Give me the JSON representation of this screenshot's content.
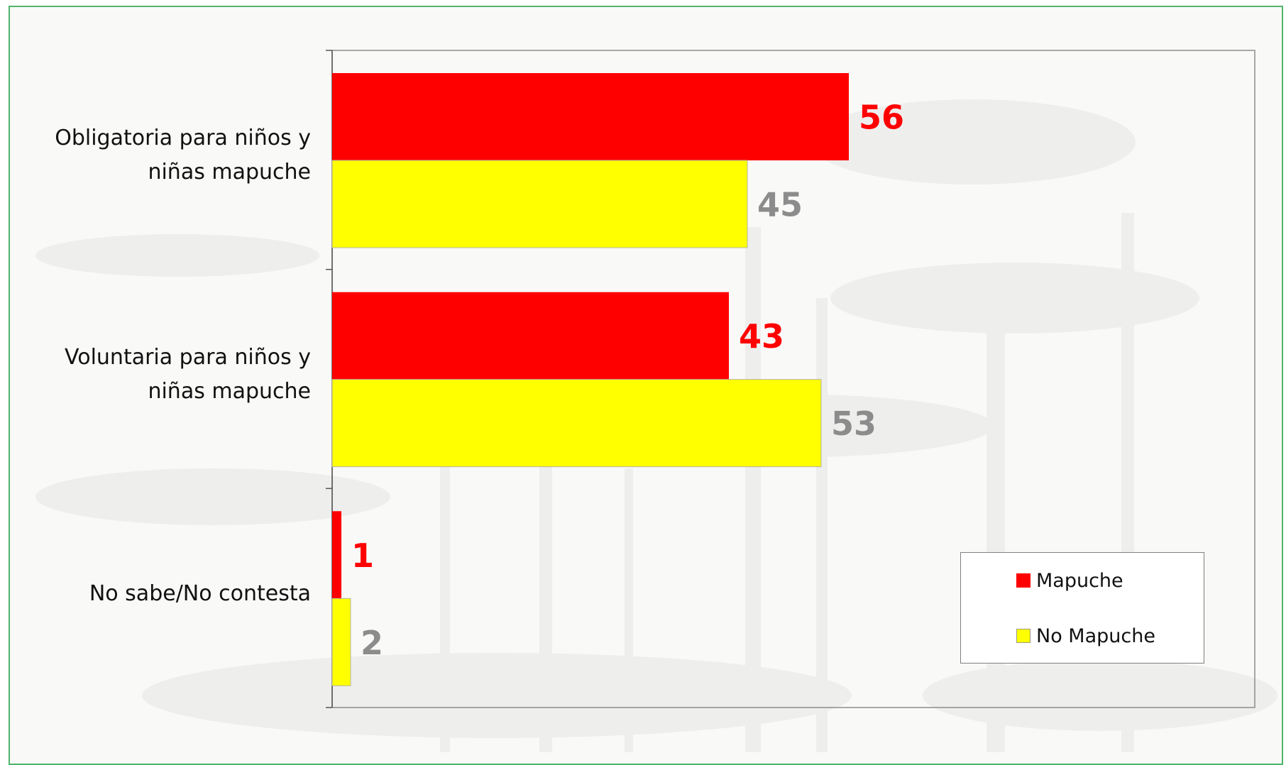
{
  "chart_data": {
    "type": "bar",
    "orientation": "horizontal",
    "categories": [
      "Obligatoria para niños y niñas mapuche",
      "Voluntaria para niños y niñas mapuche",
      "No sabe/No contesta"
    ],
    "category_lines": [
      [
        "Obligatoria para niños y",
        "niñas mapuche"
      ],
      [
        "Voluntaria para niños y",
        "niñas mapuche"
      ],
      [
        "No sabe/No contesta"
      ]
    ],
    "series": [
      {
        "name": "Mapuche",
        "values": [
          56,
          43,
          1
        ],
        "color": "#ff0000",
        "label_color": "#ff0000"
      },
      {
        "name": "No Mapuche",
        "values": [
          45,
          53,
          2
        ],
        "color": "#ffff00",
        "label_color": "#8c8c8c"
      }
    ],
    "xlim": [
      0,
      100
    ],
    "grid": false,
    "legend_position": "bottom-right"
  },
  "legend": {
    "items": [
      {
        "label": "Mapuche",
        "color": "#ff0000"
      },
      {
        "label": "No Mapuche",
        "color": "#ffff00"
      }
    ]
  }
}
